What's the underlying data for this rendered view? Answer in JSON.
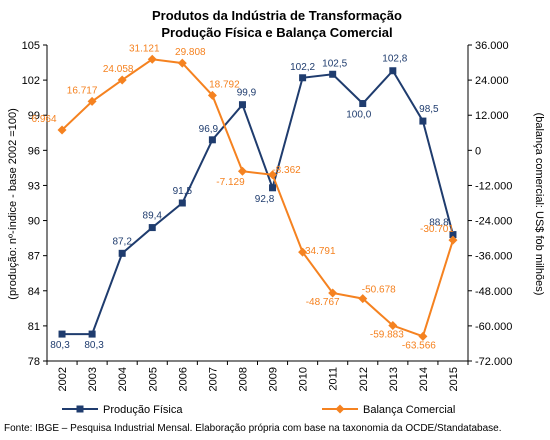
{
  "chart_data": {
    "type": "line",
    "title": "Produtos da Indústria de Transformação",
    "subtitle": "Produção Física e Balança Comercial",
    "categories": [
      "2002",
      "2003",
      "2004",
      "2005",
      "2006",
      "2007",
      "2008",
      "2009",
      "2010",
      "2011",
      "2012",
      "2013",
      "2014",
      "2015"
    ],
    "y_left": {
      "label": "(produção: nº-índice - base 2002 =100)",
      "lim": [
        78,
        105
      ],
      "ticks": [
        "78",
        "81",
        "84",
        "87",
        "90",
        "93",
        "96",
        "99",
        "102",
        "105"
      ]
    },
    "y_right": {
      "label": "(balança comercial: US$ fob milhões)",
      "lim": [
        -72000,
        36000
      ],
      "ticks": [
        "-72.000",
        "-60.000",
        "-48.000",
        "-36.000",
        "-24.000",
        "-12.000",
        "0",
        "12.000",
        "24.000",
        "36.000"
      ]
    },
    "series": [
      {
        "name": "Produção Física",
        "axis": "left",
        "color": "#1f3c6e",
        "marker": "square",
        "values": [
          80.3,
          80.3,
          87.2,
          89.4,
          91.5,
          96.9,
          99.9,
          92.8,
          102.2,
          102.5,
          100.0,
          102.8,
          98.5,
          88.8
        ],
        "labels": [
          "80,3",
          "80,3",
          "87,2",
          "89,4",
          "91,5",
          "96,9",
          "99,9",
          "92,8",
          "102,2",
          "102,5",
          "100,0",
          "102,8",
          "98,5",
          "88,8"
        ]
      },
      {
        "name": "Balança Comercial",
        "axis": "right",
        "color": "#f58220",
        "marker": "diamond",
        "values": [
          6964,
          16717,
          24058,
          31121,
          29808,
          18792,
          -7129,
          -8362,
          -34791,
          -48767,
          -50678,
          -59883,
          -63566,
          -30701
        ],
        "labels": [
          "6.964",
          "16.717",
          "24.058",
          "31.121",
          "29.808",
          "18.792",
          "-7.129",
          "-8.362",
          "-34.791",
          "-48.767",
          "-50.678",
          "-59.883",
          "-63.566",
          "-30.701"
        ]
      }
    ],
    "legend_position": "bottom",
    "grid": false
  },
  "source": "Fonte: IBGE – Pesquisa Industrial Mensal. Elaboração própria com base na taxonomia da OCDE/Standatabase."
}
